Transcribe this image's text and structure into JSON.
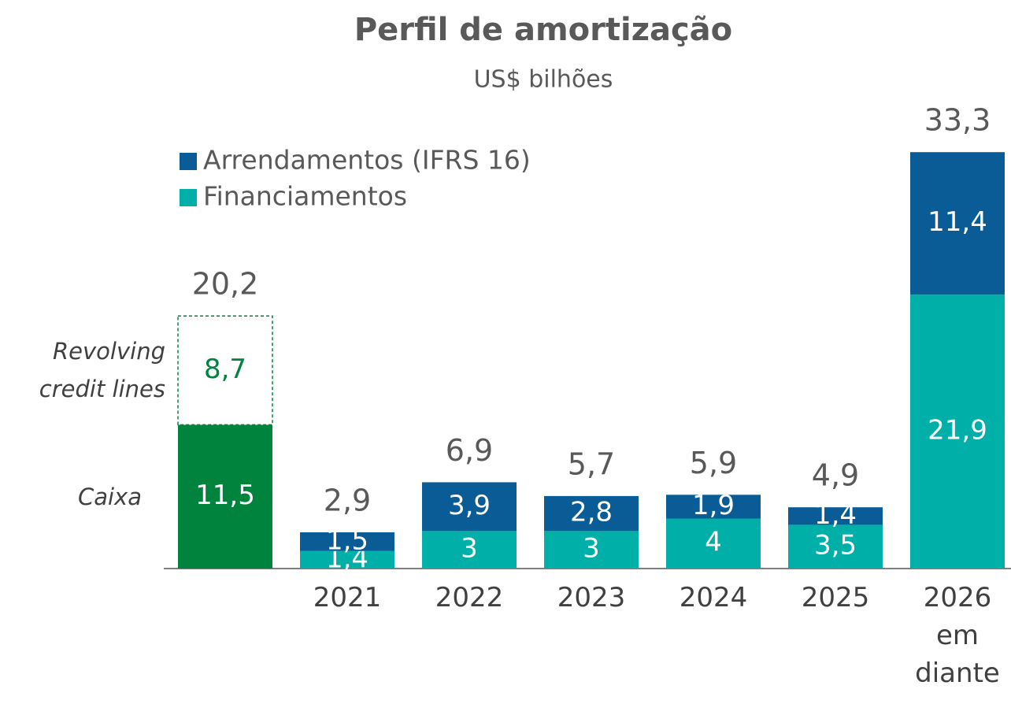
{
  "chart_data": {
    "type": "stacked_bar",
    "title": "Perfil de amortização",
    "subtitle": "US$ bilhões",
    "categories": [
      "2021",
      "2022",
      "2023",
      "2024",
      "2025",
      "2026 em diante"
    ],
    "series": [
      {
        "name": "Financiamentos",
        "color": "#00b0a8",
        "values": [
          1.4,
          3,
          3,
          4,
          3.5,
          21.9
        ],
        "value_labels": [
          "1,4",
          "3",
          "3",
          "4",
          "3,5",
          "21,9"
        ]
      },
      {
        "name": "Arrendamentos (IFRS 16)",
        "color": "#0a5c96",
        "values": [
          1.5,
          3.9,
          2.8,
          1.9,
          1.4,
          11.4
        ],
        "value_labels": [
          "1,5",
          "3,9",
          "2,8",
          "1,9",
          "1,4",
          "11,4"
        ]
      }
    ],
    "totals": [
      2.9,
      6.9,
      5.7,
      5.9,
      4.9,
      33.3
    ],
    "total_labels": [
      "2,9",
      "6,9",
      "5,7",
      "5,9",
      "4,9",
      "33,3"
    ],
    "liquidity": {
      "items": [
        {
          "name": "Caixa",
          "value": 11.5,
          "value_label": "11,5",
          "color": "#00843d"
        },
        {
          "name": "Revolving credit lines",
          "value": 8.7,
          "value_label": "8,7",
          "color": "#00843d"
        }
      ],
      "total": 20.2,
      "total_label": "20,2"
    }
  }
}
